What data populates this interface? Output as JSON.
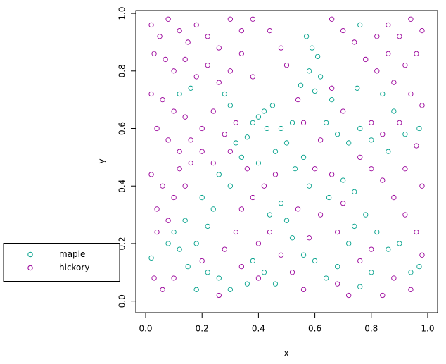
{
  "chart_data": {
    "type": "scatter",
    "xlabel": "x",
    "ylabel": "y",
    "xlim": [
      -0.035,
      1.035
    ],
    "ylim": [
      -0.04,
      1.01
    ],
    "xticks": [
      {
        "value": 0,
        "label": "0.0"
      },
      {
        "value": 0.2,
        "label": "0.2"
      },
      {
        "value": 0.4,
        "label": "0.4"
      },
      {
        "value": 0.6,
        "label": "0.6"
      },
      {
        "value": 0.8,
        "label": "0.8"
      },
      {
        "value": 1,
        "label": "1.0"
      }
    ],
    "yticks": [
      {
        "value": 0,
        "label": "0.0"
      },
      {
        "value": 0.2,
        "label": "0.2"
      },
      {
        "value": 0.4,
        "label": "0.4"
      },
      {
        "value": 0.6,
        "label": "0.6"
      },
      {
        "value": 0.8,
        "label": "0.8"
      },
      {
        "value": 1,
        "label": "1.0"
      }
    ],
    "legend": "left",
    "series": [
      {
        "name": "maple",
        "color": "#00a08a",
        "x": [
          0.57,
          0.59,
          0.61,
          0.58,
          0.62,
          0.55,
          0.6,
          0.66,
          0.45,
          0.42,
          0.4,
          0.43,
          0.38,
          0.36,
          0.32,
          0.3,
          0.28,
          0.34,
          0.4,
          0.46,
          0.5,
          0.53,
          0.56,
          0.64,
          0.68,
          0.72,
          0.76,
          0.8,
          0.86,
          0.92,
          0.97,
          0.7,
          0.74,
          0.65,
          0.58,
          0.48,
          0.44,
          0.5,
          0.52,
          0.56,
          0.6,
          0.64,
          0.68,
          0.72,
          0.74,
          0.78,
          0.82,
          0.86,
          0.9,
          0.94,
          0.97,
          0.8,
          0.76,
          0.46,
          0.42,
          0.38,
          0.36,
          0.3,
          0.26,
          0.22,
          0.18,
          0.15,
          0.12,
          0.1,
          0.14,
          0.18,
          0.22,
          0.24,
          0.2,
          0.08,
          0.02,
          0.16,
          0.12,
          0.26,
          0.3,
          0.84,
          0.88,
          0.75,
          0.76,
          0.52,
          0.48
        ],
        "values": [
          0.92,
          0.88,
          0.85,
          0.8,
          0.78,
          0.75,
          0.73,
          0.7,
          0.68,
          0.66,
          0.64,
          0.6,
          0.62,
          0.57,
          0.55,
          0.68,
          0.72,
          0.5,
          0.48,
          0.52,
          0.55,
          0.46,
          0.5,
          0.62,
          0.58,
          0.55,
          0.6,
          0.56,
          0.52,
          0.58,
          0.6,
          0.42,
          0.38,
          0.36,
          0.4,
          0.34,
          0.3,
          0.28,
          0.22,
          0.16,
          0.14,
          0.08,
          0.12,
          0.2,
          0.26,
          0.3,
          0.24,
          0.18,
          0.2,
          0.1,
          0.12,
          0.1,
          0.05,
          0.06,
          0.1,
          0.14,
          0.06,
          0.04,
          0.08,
          0.1,
          0.04,
          0.12,
          0.18,
          0.24,
          0.28,
          0.2,
          0.26,
          0.32,
          0.36,
          0.2,
          0.15,
          0.74,
          0.72,
          0.44,
          0.4,
          0.72,
          0.66,
          0.74,
          0.96,
          0.62,
          0.6
        ]
      },
      {
        "name": "hickory",
        "color": "#990099",
        "x": [
          0.02,
          0.05,
          0.08,
          0.12,
          0.15,
          0.18,
          0.22,
          0.26,
          0.3,
          0.34,
          0.38,
          0.03,
          0.07,
          0.1,
          0.14,
          0.18,
          0.22,
          0.26,
          0.3,
          0.34,
          0.38,
          0.02,
          0.06,
          0.1,
          0.14,
          0.2,
          0.24,
          0.04,
          0.08,
          0.12,
          0.16,
          0.2,
          0.24,
          0.02,
          0.06,
          0.1,
          0.14,
          0.04,
          0.08,
          0.03,
          0.06,
          0.1,
          0.28,
          0.32,
          0.34,
          0.4,
          0.42,
          0.46,
          0.38,
          0.34,
          0.48,
          0.44,
          0.5,
          0.66,
          0.7,
          0.74,
          0.78,
          0.82,
          0.86,
          0.9,
          0.94,
          0.98,
          0.96,
          0.92,
          0.88,
          0.94,
          0.98,
          0.9,
          0.96,
          0.92,
          0.98,
          0.88,
          0.84,
          0.8,
          0.76,
          0.7,
          0.66,
          0.62,
          0.6,
          0.66,
          0.62,
          0.68,
          0.58,
          0.54,
          0.92,
          0.96,
          0.98,
          0.94,
          0.88,
          0.84,
          0.72,
          0.68,
          0.56,
          0.52,
          0.48,
          0.44,
          0.4,
          0.26,
          0.2,
          0.36,
          0.3,
          0.32,
          0.28,
          0.56,
          0.54,
          0.8,
          0.84,
          0.86,
          0.82,
          0.04,
          0.12,
          0.16,
          0.7,
          0.76,
          0.8
        ],
        "values": [
          0.96,
          0.92,
          0.98,
          0.94,
          0.9,
          0.96,
          0.92,
          0.88,
          0.98,
          0.94,
          0.98,
          0.86,
          0.84,
          0.8,
          0.84,
          0.78,
          0.82,
          0.76,
          0.8,
          0.86,
          0.78,
          0.72,
          0.7,
          0.66,
          0.64,
          0.6,
          0.66,
          0.6,
          0.56,
          0.52,
          0.48,
          0.52,
          0.48,
          0.44,
          0.4,
          0.36,
          0.4,
          0.32,
          0.28,
          0.08,
          0.04,
          0.08,
          0.18,
          0.24,
          0.12,
          0.2,
          0.4,
          0.44,
          0.36,
          0.32,
          0.88,
          0.94,
          0.82,
          0.98,
          0.94,
          0.9,
          0.84,
          0.8,
          0.96,
          0.92,
          0.98,
          0.94,
          0.86,
          0.82,
          0.76,
          0.72,
          0.68,
          0.62,
          0.54,
          0.46,
          0.4,
          0.36,
          0.42,
          0.46,
          0.5,
          0.66,
          0.74,
          0.56,
          0.46,
          0.44,
          0.3,
          0.24,
          0.22,
          0.32,
          0.3,
          0.24,
          0.16,
          0.04,
          0.08,
          0.02,
          0.02,
          0.06,
          0.04,
          0.1,
          0.16,
          0.24,
          0.08,
          0.02,
          0.14,
          0.46,
          0.52,
          0.62,
          0.58,
          0.62,
          0.7,
          0.62,
          0.58,
          0.86,
          0.92,
          0.24,
          0.46,
          0.56,
          0.34,
          0.14,
          0.18
        ]
      }
    ]
  }
}
